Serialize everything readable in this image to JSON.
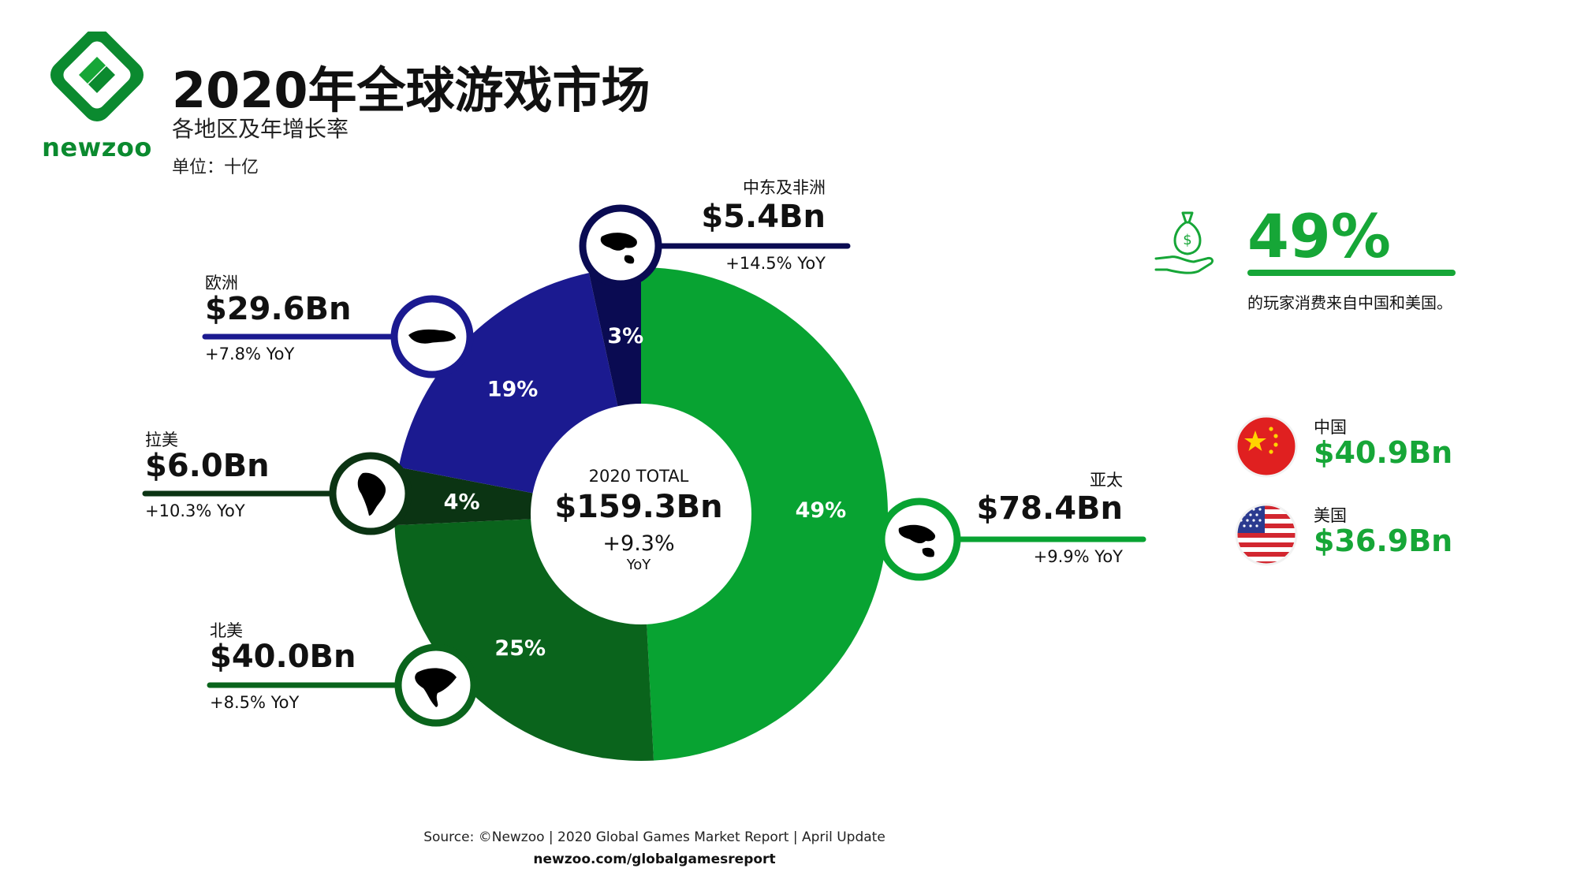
{
  "brand": {
    "name": "newzoo",
    "color": "#0b8a2f"
  },
  "header": {
    "title": "2020年全球游戏市场",
    "subtitle": "各地区及年增长率",
    "unit": "单位：十亿"
  },
  "chart_data": {
    "type": "pie",
    "title": "2020年全球游戏市场",
    "subtitle": "各地区及年增长率",
    "unit": "单位：十亿",
    "center": {
      "label": "2020 TOTAL",
      "value": "$159.3Bn",
      "growth": "+9.3%",
      "growth_unit": "YoY"
    },
    "slices": [
      {
        "region": "亚太",
        "value": 78.4,
        "value_label": "$78.4Bn",
        "share": 49,
        "share_label": "49%",
        "yoy": "+9.9% YoY",
        "color": "#08a332"
      },
      {
        "region": "北美",
        "value": 40.0,
        "value_label": "$40.0Bn",
        "share": 25,
        "share_label": "25%",
        "yoy": "+8.5% YoY",
        "color": "#0a641c"
      },
      {
        "region": "拉美",
        "value": 6.0,
        "value_label": "$6.0Bn",
        "share": 4,
        "share_label": "4%",
        "yoy": "+10.3% YoY",
        "color": "#0b3413"
      },
      {
        "region": "欧洲",
        "value": 29.6,
        "value_label": "$29.6Bn",
        "share": 19,
        "share_label": "19%",
        "yoy": "+7.8% YoY",
        "color": "#1b1a90"
      },
      {
        "region": "中东及非洲",
        "value": 5.4,
        "value_label": "$5.4Bn",
        "share": 3,
        "share_label": "3%",
        "yoy": "+14.5% YoY",
        "color": "#0a0b52"
      }
    ]
  },
  "spending": {
    "percent": "49%",
    "caption": "的玩家消费来自中国和美国。",
    "icon": "money-bag-hand-icon",
    "countries": [
      {
        "name": "中国",
        "value": "$40.9Bn",
        "icon": "china-flag-icon"
      },
      {
        "name": "美国",
        "value": "$36.9Bn",
        "icon": "usa-flag-icon"
      }
    ]
  },
  "footer": {
    "source": "Source: ©Newzoo | 2020 Global Games Market Report | April Update",
    "site": "newzoo.com/globalgamesreport"
  }
}
